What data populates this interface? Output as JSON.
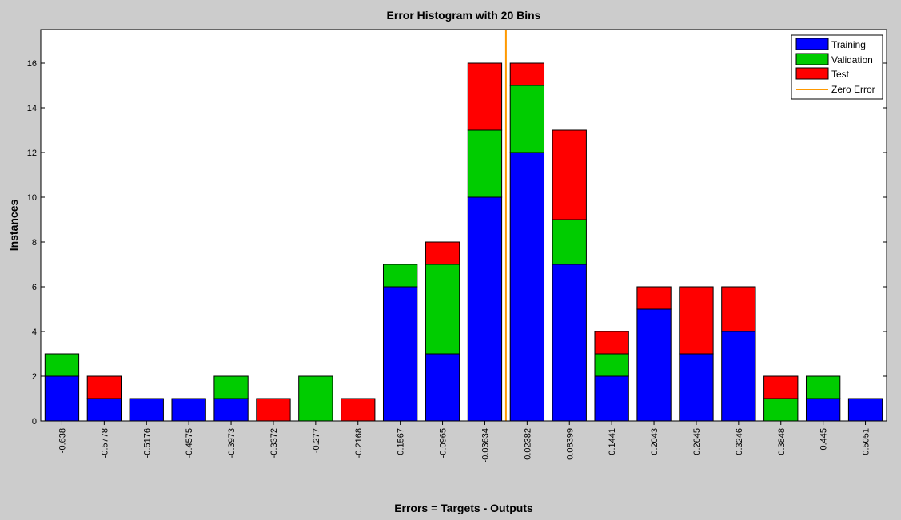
{
  "chart_data": {
    "type": "bar",
    "stacked": true,
    "title": "Error Histogram with 20 Bins",
    "xlabel": "Errors = Targets - Outputs",
    "ylabel": "Instances",
    "ylim": [
      0,
      17.5
    ],
    "yticks": [
      0,
      2,
      4,
      6,
      8,
      10,
      12,
      14,
      16
    ],
    "grid": false,
    "legend_position": "top-right",
    "categories": [
      "-0.638",
      "-0.5778",
      "-0.5176",
      "-0.4575",
      "-0.3973",
      "-0.3372",
      "-0.277",
      "-0.2168",
      "-0.1567",
      "-0.0965",
      "-0.03634",
      "0.02382",
      "0.08399",
      "0.1441",
      "0.2043",
      "0.2645",
      "0.3246",
      "0.3848",
      "0.445",
      "0.5051"
    ],
    "series": [
      {
        "name": "Training",
        "color": "#0000ff",
        "values": [
          2,
          1,
          1,
          1,
          1,
          0,
          0,
          0,
          6,
          3,
          10,
          12,
          7,
          2,
          5,
          3,
          4,
          0,
          1,
          1
        ]
      },
      {
        "name": "Validation",
        "color": "#00cc00",
        "values": [
          1,
          0,
          0,
          0,
          1,
          0,
          2,
          0,
          1,
          4,
          3,
          3,
          2,
          1,
          0,
          0,
          0,
          1,
          1,
          0
        ]
      },
      {
        "name": "Test",
        "color": "#ff0000",
        "values": [
          0,
          1,
          0,
          0,
          0,
          1,
          0,
          1,
          0,
          1,
          3,
          1,
          4,
          1,
          1,
          3,
          2,
          1,
          0,
          0
        ]
      }
    ],
    "zero_error": {
      "name": "Zero Error",
      "color": "#ff9900",
      "position_between": [
        "-0.03634",
        "0.02382"
      ]
    }
  }
}
